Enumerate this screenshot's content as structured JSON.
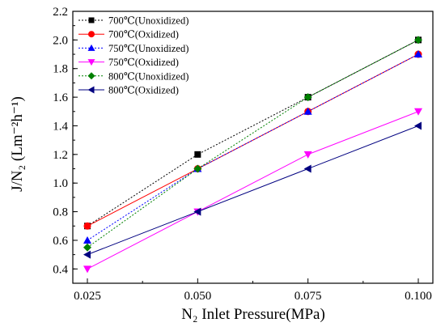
{
  "chart_data": {
    "type": "line",
    "title": "",
    "xlabel": "N₂ Inlet Pressure(MPa)",
    "ylabel": "J/N₂ (Lm⁻²h⁻¹)",
    "x": [
      0.025,
      0.05,
      0.075,
      0.1
    ],
    "x_tick_labels": [
      "0.025",
      "0.050",
      "0.075",
      "0.100"
    ],
    "xlim": [
      0.025,
      0.1
    ],
    "ylim": [
      0.3,
      2.2
    ],
    "y_ticks": [
      0.4,
      0.6,
      0.8,
      1.0,
      1.2,
      1.4,
      1.6,
      1.8,
      2.0,
      2.2
    ],
    "y_tick_labels": [
      "0.4",
      "0.6",
      "0.8",
      "1.0",
      "1.2",
      "1.4",
      "1.6",
      "1.8",
      "2.0",
      "2.2"
    ],
    "grid": false,
    "legend_position": "top-left",
    "series": [
      {
        "name": "700℃(Unoxidized)",
        "values": [
          0.7,
          1.2,
          1.6,
          2.0
        ],
        "color": "#000000",
        "marker": "square",
        "dashed": true
      },
      {
        "name": "700℃(Oxidized)",
        "values": [
          0.7,
          1.1,
          1.5,
          1.9
        ],
        "color": "#ff0000",
        "marker": "circle",
        "dashed": false
      },
      {
        "name": "750℃(Unoxidized)",
        "values": [
          0.6,
          1.1,
          1.5,
          1.9
        ],
        "color": "#0000ff",
        "marker": "triangle-up",
        "dashed": true
      },
      {
        "name": "750℃(Oxidized)",
        "values": [
          0.4,
          0.8,
          1.2,
          1.5
        ],
        "color": "#ff00ff",
        "marker": "triangle-down",
        "dashed": false
      },
      {
        "name": "800℃(Unoxidized)",
        "values": [
          0.55,
          1.1,
          1.6,
          2.0
        ],
        "color": "#008000",
        "marker": "diamond",
        "dashed": true
      },
      {
        "name": "800℃(Oxidized)",
        "values": [
          0.5,
          0.8,
          1.1,
          1.4
        ],
        "color": "#000080",
        "marker": "triangle-left",
        "dashed": false
      }
    ]
  }
}
